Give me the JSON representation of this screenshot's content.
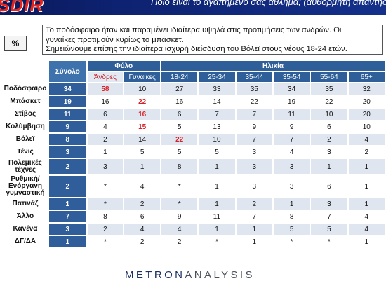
{
  "header": {
    "logo_text": "SDIR",
    "question": "Ποιο είναι το αγαπημένο σας άθλημα; (αυθόρμητη απάντηση)"
  },
  "pct_label": "%",
  "note_lines": [
    "Το ποδόσφαιρο ήταν και παραμένει ιδιαίτερα υψηλά στις προτιμήσεις των ανδρών. Οι",
    "γυναίκες προτιμούν κυρίως το μπάσκετ.",
    "Σημειώνουμε επίσης την ιδιαίτερα ισχυρή διείσδυση του Βόλεϊ στους νέους 18-24 ετών."
  ],
  "table": {
    "total_header": "Σύνολο",
    "gender_header": "Φύλο",
    "age_header": "Ηλικία",
    "gender_cols": [
      "Άνδρες",
      "Γυναίκες"
    ],
    "age_cols": [
      "18-24",
      "25-34",
      "35-44",
      "35-54",
      "55-64",
      "65+"
    ],
    "rows": [
      {
        "label": "Ποδόσφαιρο",
        "total": "34",
        "cells": [
          "58",
          "10",
          "27",
          "33",
          "35",
          "34",
          "35",
          "32"
        ]
      },
      {
        "label": "Μπάσκετ",
        "total": "19",
        "cells": [
          "16",
          "22",
          "16",
          "14",
          "22",
          "19",
          "22",
          "20"
        ]
      },
      {
        "label": "Στίβος",
        "total": "11",
        "cells": [
          "6",
          "16",
          "6",
          "7",
          "7",
          "11",
          "10",
          "20"
        ]
      },
      {
        "label": "Κολύμβηση",
        "total": "9",
        "cells": [
          "4",
          "15",
          "5",
          "13",
          "9",
          "9",
          "6",
          "10"
        ]
      },
      {
        "label": "Βόλεϊ",
        "total": "8",
        "cells": [
          "2",
          "14",
          "22",
          "10",
          "7",
          "7",
          "2",
          "4"
        ]
      },
      {
        "label": "Τένις",
        "total": "3",
        "cells": [
          "1",
          "5",
          "5",
          "5",
          "3",
          "4",
          "3",
          "2"
        ]
      },
      {
        "label": "Πολεμικές τέχνες",
        "total": "2",
        "cells": [
          "3",
          "1",
          "8",
          "1",
          "3",
          "3",
          "1",
          "1"
        ]
      },
      {
        "label": "Ρυθμική/ Ενόργανη γυμναστική",
        "total": "2",
        "cells": [
          "*",
          "4",
          "*",
          "1",
          "3",
          "3",
          "6",
          "1"
        ]
      },
      {
        "label": "Πατινάζ",
        "total": "1",
        "cells": [
          "*",
          "2",
          "*",
          "1",
          "2",
          "1",
          "3",
          "1"
        ]
      },
      {
        "label": "Άλλο",
        "total": "7",
        "cells": [
          "8",
          "6",
          "9",
          "11",
          "7",
          "8",
          "7",
          "4"
        ]
      },
      {
        "label": "Κανένα",
        "total": "3",
        "cells": [
          "2",
          "4",
          "4",
          "1",
          "1",
          "5",
          "5",
          "4"
        ]
      },
      {
        "label": "ΔΓ/ΔΑ",
        "total": "1",
        "cells": [
          "*",
          "2",
          "2",
          "*",
          "1",
          "*",
          "*",
          "1"
        ]
      }
    ],
    "highlighted": [
      [
        0,
        0
      ],
      [
        1,
        1
      ],
      [
        2,
        1
      ],
      [
        3,
        1
      ],
      [
        4,
        2
      ]
    ]
  },
  "footer": {
    "brand_main": "METRON",
    "brand_sub": "ANALYSIS"
  },
  "colors": {
    "header_blue": "#2e5f98",
    "cell_fill": "#dfe6f0",
    "highlight_red": "#d92027",
    "brand_navy": "#1b2f63"
  }
}
